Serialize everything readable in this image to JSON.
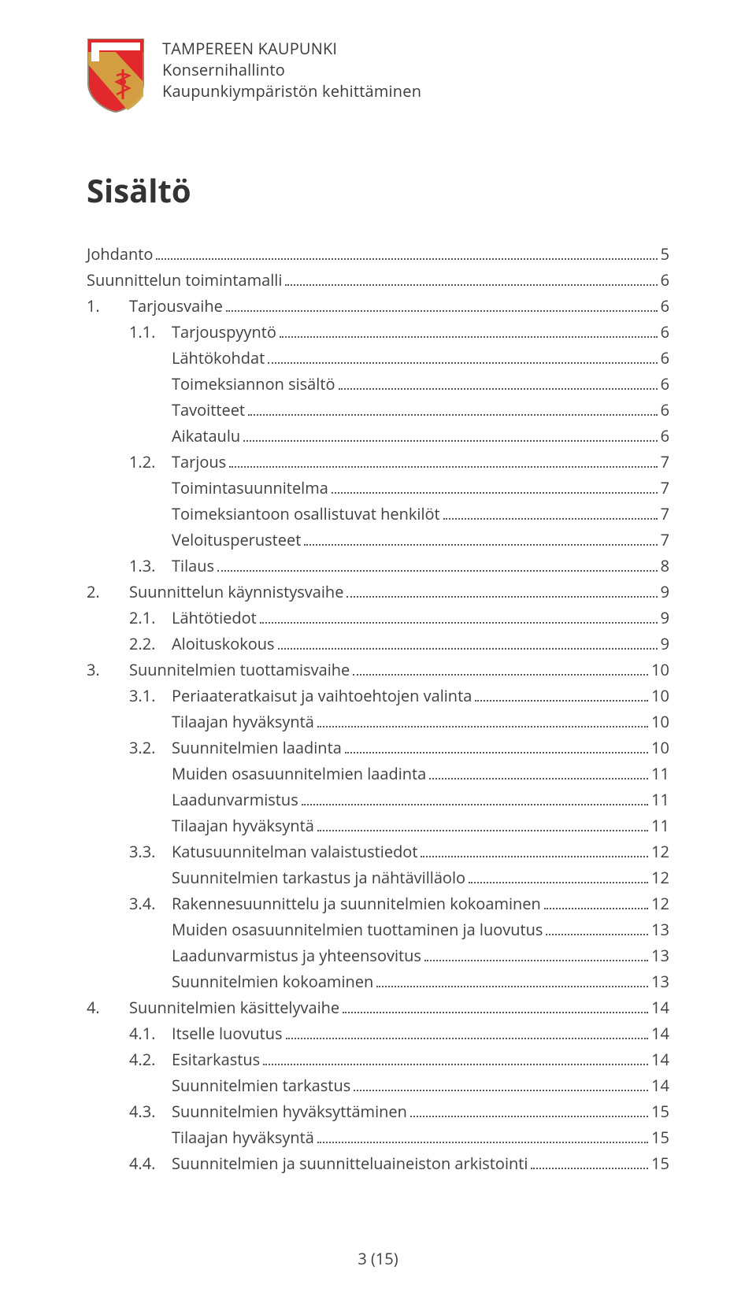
{
  "header": {
    "org_line1": "TAMPEREEN KAUPUNKI",
    "org_line2": "Konsernihallinto",
    "org_line3": "Kaupunkiympäristön kehittäminen",
    "logo": {
      "shield_fill": "#e1282d",
      "wave_fill": "#d2a443",
      "outline": "#968b70"
    }
  },
  "title": "Sisältö",
  "toc": [
    {
      "level": 0,
      "num": "",
      "label": "Johdanto",
      "page": "5"
    },
    {
      "level": 0,
      "num": "",
      "label": "Suunnittelun toimintamalli",
      "page": "6"
    },
    {
      "level": 1,
      "num": "1.",
      "label": "Tarjousvaihe",
      "page": "6"
    },
    {
      "level": 2,
      "num": "1.1.",
      "label": "Tarjouspyyntö",
      "page": "6"
    },
    {
      "level": 3,
      "num": "",
      "label": "Lähtökohdat",
      "page": "6"
    },
    {
      "level": 3,
      "num": "",
      "label": "Toimeksiannon sisältö",
      "page": "6"
    },
    {
      "level": 3,
      "num": "",
      "label": "Tavoitteet",
      "page": "6"
    },
    {
      "level": 3,
      "num": "",
      "label": "Aikataulu",
      "page": "6"
    },
    {
      "level": 2,
      "num": "1.2.",
      "label": "Tarjous",
      "page": "7"
    },
    {
      "level": 3,
      "num": "",
      "label": "Toimintasuunnitelma",
      "page": "7"
    },
    {
      "level": 3,
      "num": "",
      "label": "Toimeksiantoon osallistuvat henkilöt",
      "page": "7"
    },
    {
      "level": 3,
      "num": "",
      "label": "Veloitusperusteet",
      "page": "7"
    },
    {
      "level": 2,
      "num": "1.3.",
      "label": "Tilaus",
      "page": "8"
    },
    {
      "level": 1,
      "num": "2.",
      "label": "Suunnittelun käynnistysvaihe",
      "page": "9"
    },
    {
      "level": 2,
      "num": "2.1.",
      "label": "Lähtötiedot",
      "page": "9"
    },
    {
      "level": 2,
      "num": "2.2.",
      "label": "Aloituskokous",
      "page": "9"
    },
    {
      "level": 1,
      "num": "3.",
      "label": "Suunnitelmien tuottamisvaihe",
      "page": "10"
    },
    {
      "level": 2,
      "num": "3.1.",
      "label": "Periaateratkaisut ja vaihtoehtojen valinta",
      "page": "10"
    },
    {
      "level": 3,
      "num": "",
      "label": "Tilaajan hyväksyntä",
      "page": "10"
    },
    {
      "level": 2,
      "num": "3.2.",
      "label": "Suunnitelmien laadinta",
      "page": "10"
    },
    {
      "level": 3,
      "num": "",
      "label": "Muiden osasuunnitelmien laadinta",
      "page": "11"
    },
    {
      "level": 3,
      "num": "",
      "label": "Laadunvarmistus",
      "page": "11"
    },
    {
      "level": 3,
      "num": "",
      "label": "Tilaajan hyväksyntä",
      "page": "11"
    },
    {
      "level": 2,
      "num": "3.3.",
      "label": "Katusuunnitelman valaistustiedot",
      "page": "12"
    },
    {
      "level": 3,
      "num": "",
      "label": "Suunnitelmien tarkastus ja nähtävilläolo",
      "page": "12"
    },
    {
      "level": 2,
      "num": "3.4.",
      "label": "Rakennesuunnittelu ja suunnitelmien kokoaminen",
      "page": "12"
    },
    {
      "level": 3,
      "num": "",
      "label": "Muiden osasuunnitelmien tuottaminen ja luovutus",
      "page": "13"
    },
    {
      "level": 3,
      "num": "",
      "label": "Laadunvarmistus ja yhteensovitus",
      "page": "13"
    },
    {
      "level": 3,
      "num": "",
      "label": "Suunnitelmien kokoaminen",
      "page": "13"
    },
    {
      "level": 1,
      "num": "4.",
      "label": "Suunnitelmien käsittelyvaihe",
      "page": "14"
    },
    {
      "level": 2,
      "num": "4.1.",
      "label": "Itselle luovutus",
      "page": "14"
    },
    {
      "level": 2,
      "num": "4.2.",
      "label": "Esitarkastus",
      "page": "14"
    },
    {
      "level": 3,
      "num": "",
      "label": "Suunnitelmien tarkastus",
      "page": "14"
    },
    {
      "level": 2,
      "num": "4.3.",
      "label": "Suunnitelmien hyväksyttäminen",
      "page": "15"
    },
    {
      "level": 3,
      "num": "",
      "label": "Tilaajan hyväksyntä",
      "page": "15"
    },
    {
      "level": 2,
      "num": "4.4.",
      "label": "Suunnitelmien ja suunnitteluaineiston arkistointi",
      "page": "15"
    }
  ],
  "footer": "3 (15)",
  "colors": {
    "text": "#404040",
    "title": "#333333",
    "background": "#ffffff",
    "dots": "#555555"
  },
  "typography": {
    "body_fontsize_pt": 15,
    "title_fontsize_pt": 30,
    "line_height": 1.55
  }
}
